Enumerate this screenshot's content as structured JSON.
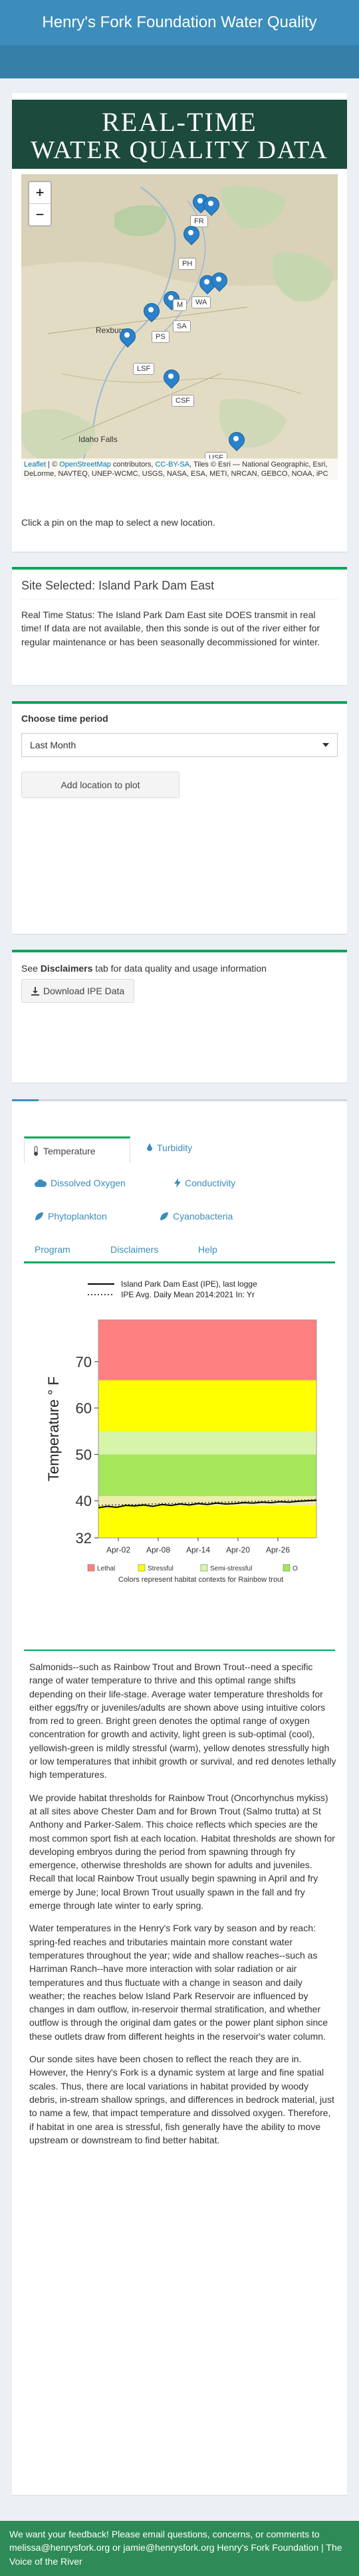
{
  "header": {
    "title": "Henry's Fork Foundation Water Quality"
  },
  "banner": {
    "line1": "REAL-TIME",
    "line2": "WATER QUALITY DATA"
  },
  "map": {
    "zoom_in": "+",
    "zoom_out": "−",
    "pins": [
      "FR",
      "PH",
      "WA",
      "M",
      "SA",
      "PS",
      "LSF",
      "CSF",
      "USF"
    ],
    "cities": [
      "Rexburg",
      "Idaho Falls"
    ],
    "attribution_links": [
      "Leaflet",
      "OpenStreetMap",
      "CC-BY-SA"
    ],
    "attribution_text1": " | © ",
    "attribution_text2": " contributors, ",
    "attribution_text3": ", Tiles © Esri — National Geographic, Esri, DeLorme, NAVTEQ, UNEP-WCMC, USGS, NASA, ESA, METI, NRCAN, GEBCO, NOAA, iPC"
  },
  "map_hint": "Click a pin on the map to select a new location.",
  "site": {
    "title": "Site Selected: Island Park Dam East",
    "status": "Real Time Status: The Island Park Dam East site DOES transmit in real time! If data are not available, then this sonde is out of the river either for regular maintenance or has been seasonally decommissioned for winter."
  },
  "period": {
    "label": "Choose time period",
    "selected": "Last Month",
    "add_button": "Add location to plot"
  },
  "disclaimer": {
    "text_pre": "See ",
    "text_bold": "Disclaimers",
    "text_post": " tab for data quality and usage information",
    "download_button": "Download IPE Data"
  },
  "tabs": [
    {
      "label": "Temperature",
      "icon": "thermometer-icon"
    },
    {
      "label": "Turbidity",
      "icon": "drop-icon"
    },
    {
      "label": "Dissolved Oxygen",
      "icon": "cloud-icon"
    },
    {
      "label": "Conductivity",
      "icon": "bolt-icon"
    },
    {
      "label": "Phytoplankton",
      "icon": "leaf-icon"
    },
    {
      "label": "Cyanobacteria",
      "icon": "leaf-icon"
    },
    {
      "label": "Program",
      "icon": ""
    },
    {
      "label": "Disclaimers",
      "icon": ""
    },
    {
      "label": "Help",
      "icon": ""
    }
  ],
  "chart_data": {
    "type": "line",
    "xlabel": "",
    "ylabel": "Temperature ° F",
    "ylim": [
      32,
      79
    ],
    "yticks": [
      32,
      40,
      50,
      60,
      70
    ],
    "xticks": [
      "Apr-02",
      "Apr-08",
      "Apr-14",
      "Apr-20",
      "Apr-26"
    ],
    "bands": [
      {
        "from": 32,
        "to": 39,
        "color": "#ffff00",
        "class": "Stressful"
      },
      {
        "from": 39,
        "to": 41,
        "color": "#eeeeaa",
        "class": "Semi-stressful"
      },
      {
        "from": 41,
        "to": 50,
        "color": "#a6e65a",
        "class": "Optimal"
      },
      {
        "from": 50,
        "to": 55,
        "color": "#d6f5a8",
        "class": "Semi-stressful"
      },
      {
        "from": 55,
        "to": 66,
        "color": "#ffff00",
        "class": "Stressful"
      },
      {
        "from": 66,
        "to": 79,
        "color": "#ff8080",
        "class": "Lethal"
      }
    ],
    "series": [
      {
        "name": "Island Park Dam East (IPE), last logge",
        "style": "solid",
        "color": "#000000",
        "values": [
          38.5,
          38.8,
          38.6,
          39.0,
          38.9,
          39.1,
          38.8,
          39.2,
          39.0,
          39.3,
          39.1,
          39.4,
          39.2,
          39.5,
          39.3,
          39.4,
          39.6,
          39.5,
          39.7,
          39.6,
          39.8,
          39.7,
          39.9,
          40.0,
          40.1
        ]
      },
      {
        "name": "IPE Avg. Daily Mean 2014:2021 In: Yr",
        "style": "dotted",
        "color": "#444444",
        "values": [
          39.0,
          39.1,
          39.1,
          39.2,
          39.2,
          39.3,
          39.3,
          39.4,
          39.4,
          39.5,
          39.5,
          39.6,
          39.6,
          39.7,
          39.7,
          39.8,
          39.8,
          39.9,
          39.9,
          40.0,
          40.0,
          40.1,
          40.1,
          40.2,
          40.3
        ]
      }
    ],
    "legend": [
      {
        "label": "Lethal",
        "color": "#ff8080"
      },
      {
        "label": "Stressful",
        "color": "#ffff00"
      },
      {
        "label": "Semi-stressful",
        "color": "#d6f5a8"
      },
      {
        "label": "O",
        "color": "#a6e65a"
      }
    ],
    "caption": "Colors represent habitat contexts for Rainbow trout"
  },
  "text": {
    "p1": "Salmonids--such as Rainbow Trout and Brown Trout--need a specific range of water temperature to thrive and this optimal range shifts depending on their life-stage. Average water temperature thresholds for either eggs/fry or juveniles/adults are shown above using intuitive colors from red to green. Bright green denotes the optimal range of oxygen concentration for growth and activity, light green is sub-optimal (cool), yellowish-green is mildly stressful (warm), yellow denotes stressfully high or low temperatures that inhibit growth or survival, and red denotes lethally high temperatures.",
    "p2": "We provide habitat thresholds for Rainbow Trout (Oncorhynchus mykiss) at all sites above Chester Dam and for Brown Trout (Salmo trutta) at St Anthony and Parker-Salem. This choice reflects which species are the most common sport fish at each location. Habitat thresholds are shown for developing embryos during the period from spawning through fry emergence, otherwise thresholds are shown for adults and juveniles. Recall that local Rainbow Trout usually begin spawning in April and fry emerge by June; local Brown Trout usually spawn in the fall and fry emerge through late winter to early spring.",
    "p3": "Water temperatures in the Henry's Fork vary by season and by reach: spring-fed reaches and tributaries maintain more constant water temperatures throughout the year; wide and shallow reaches--such as Harriman Ranch--have more interaction with solar radiation or air temperatures and thus fluctuate with a change in season and daily weather; the reaches below Island Park Reservoir are influenced by changes in dam outflow, in-reservoir thermal stratification, and whether outflow is through the original dam gates or the power plant siphon since these outlets draw from different heights in the reservoir's water column.",
    "p4": "Our sonde sites have been chosen to reflect the reach they are in. However, the Henry's Fork is a dynamic system at large and fine spatial scales. Thus, there are local variations in habitat provided by woody debris, in-stream shallow springs, and differences in bedrock material, just to name a few, that impact temperature and dissolved oxygen. Therefore, if habitat in one area is stressful, fish generally have the ability to move upstream or downstream to find better habitat."
  },
  "footer": {
    "text": "We want your feedback! Please email questions, concerns, or comments to melissa@henrysfork.org or jamie@henrysfork.org Henry's Fork Foundation | The Voice of the River"
  }
}
